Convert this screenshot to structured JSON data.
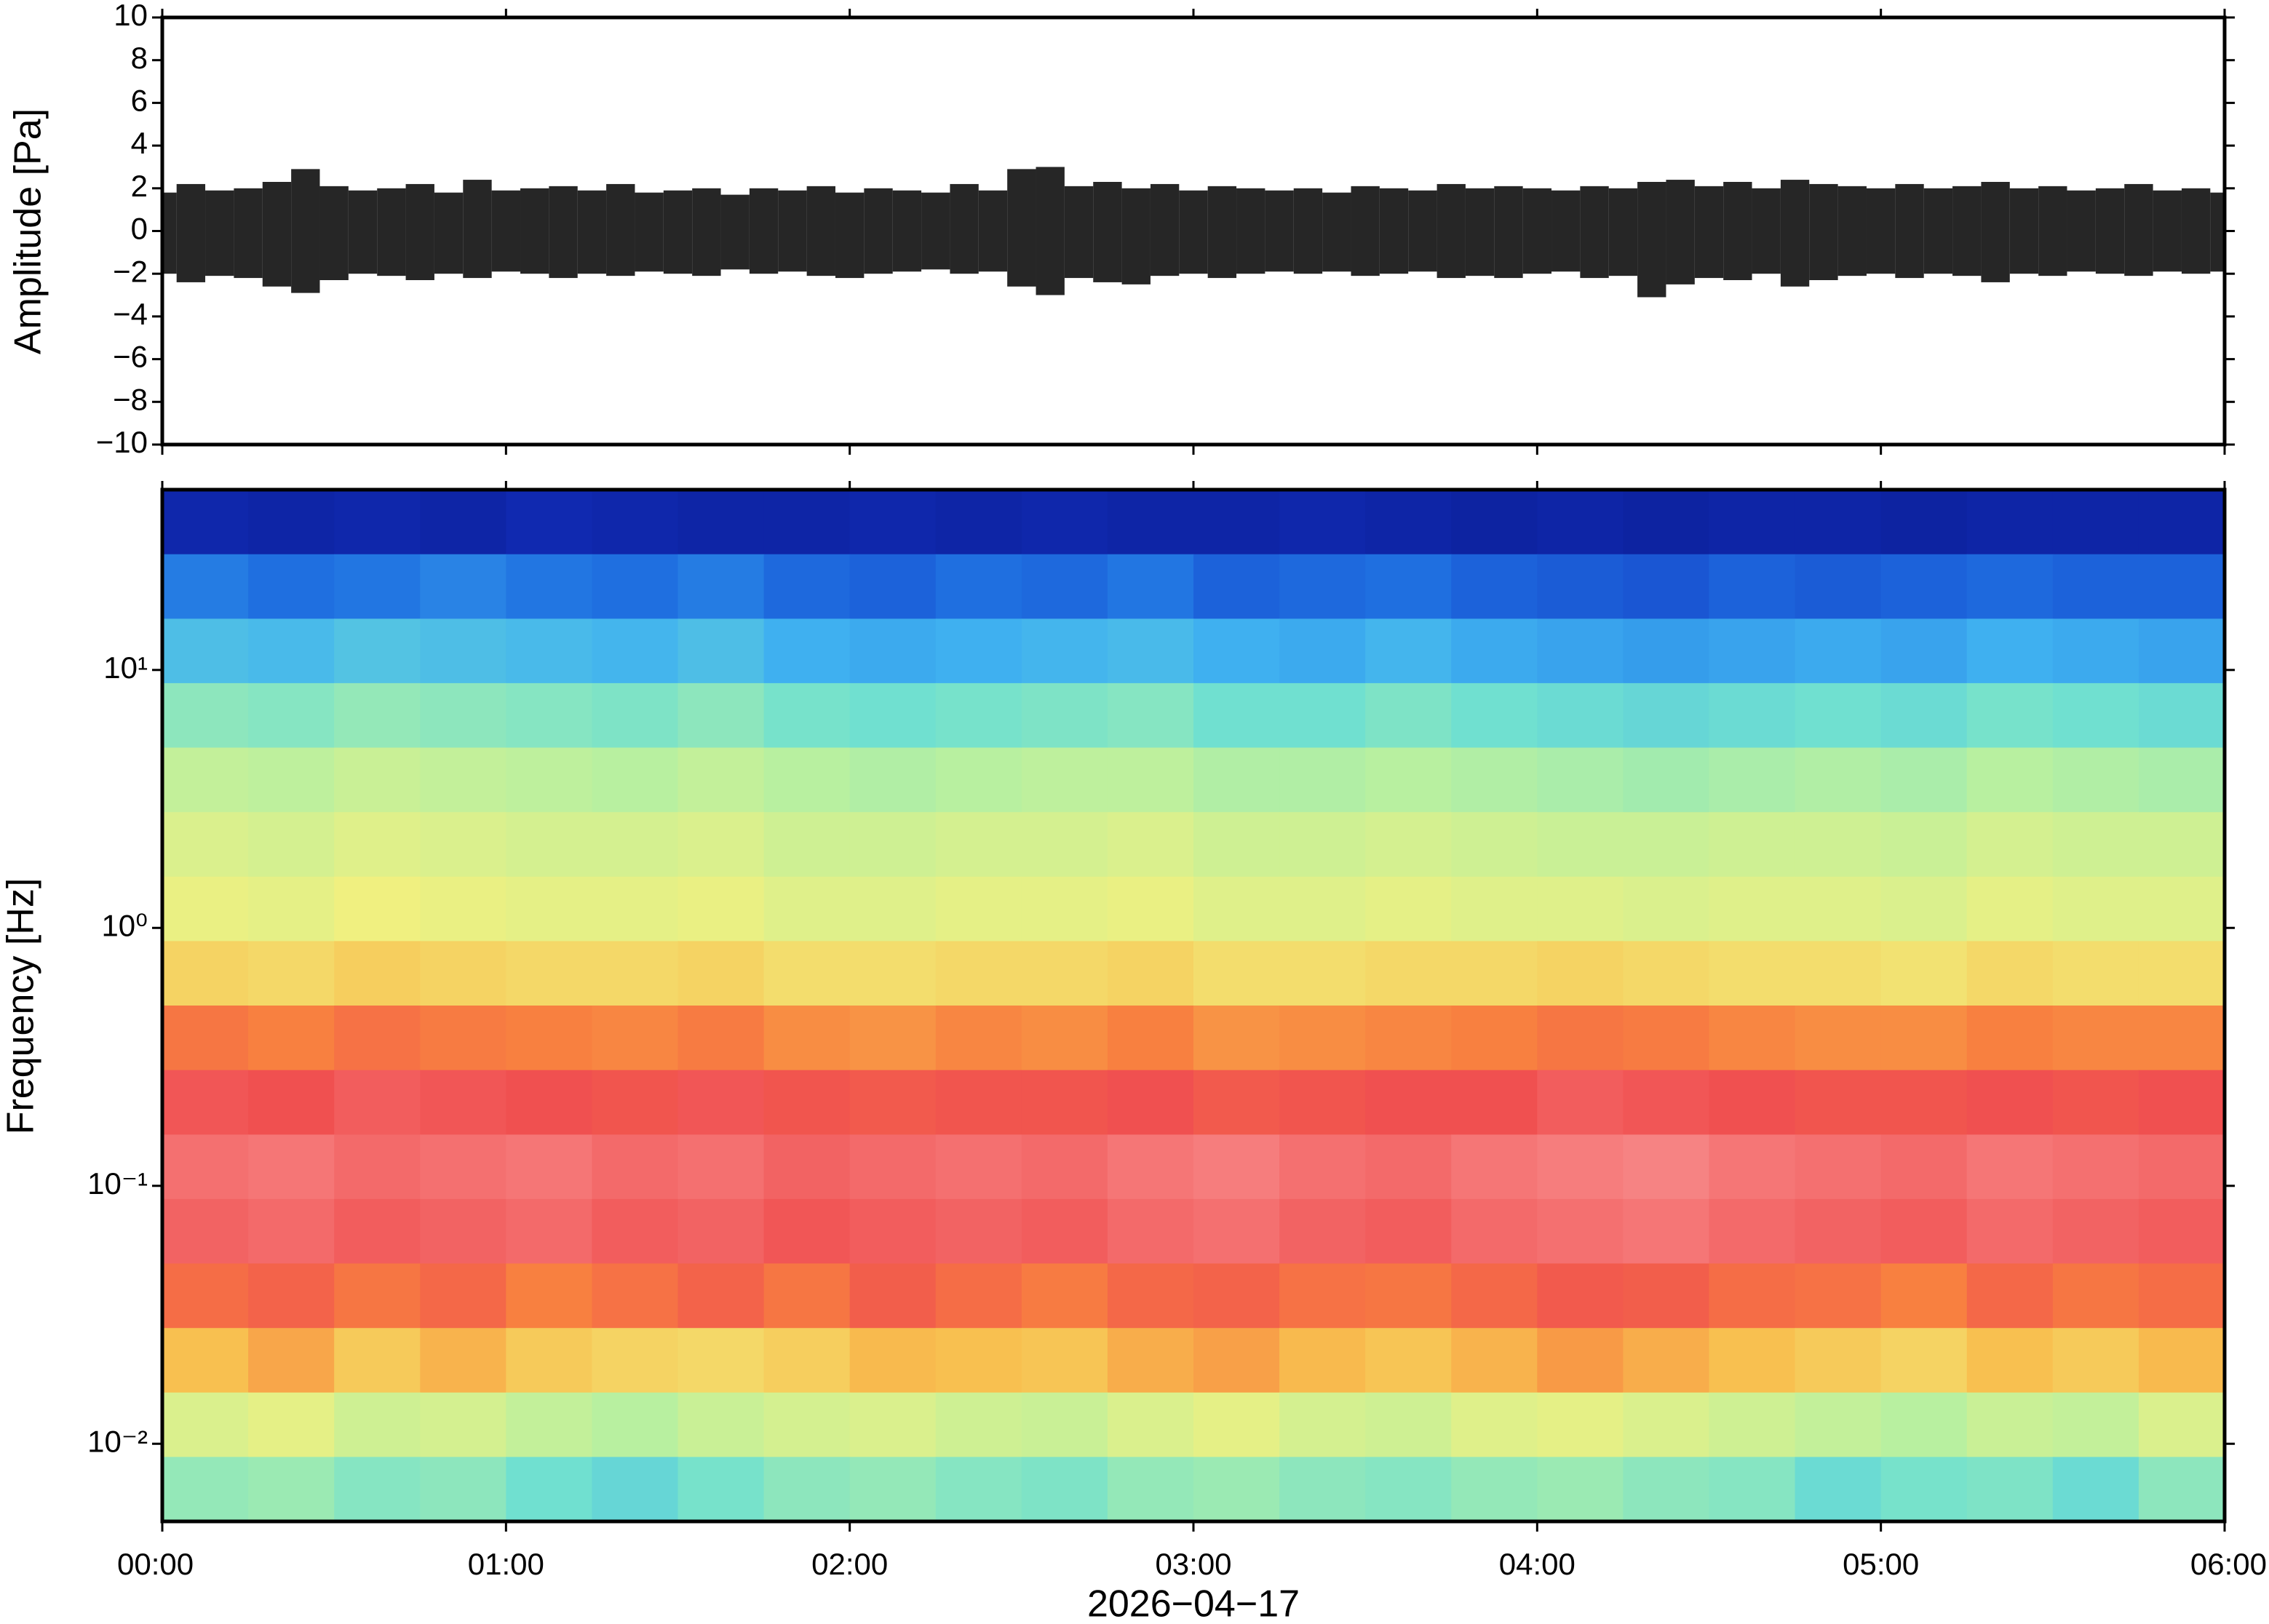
{
  "chart_data": [
    {
      "type": "range",
      "ylabel": "Amplitude [Pa]",
      "color": "#000000",
      "xlim": [
        0,
        360
      ],
      "xticks": [
        0,
        60,
        120,
        180,
        240,
        300,
        360
      ],
      "ylim": [
        -10,
        10
      ],
      "yticks": [
        {
          "value": -10,
          "label": "−10"
        },
        {
          "value": -8,
          "label": "−8"
        },
        {
          "value": -6,
          "label": "−6"
        },
        {
          "value": -4,
          "label": "−4"
        },
        {
          "value": -2,
          "label": "−2"
        },
        0,
        2,
        4,
        6,
        8,
        10
      ],
      "x": [
        0,
        5,
        10,
        15,
        20,
        25,
        30,
        35,
        40,
        45,
        50,
        55,
        60,
        65,
        70,
        75,
        80,
        85,
        90,
        95,
        100,
        105,
        110,
        115,
        120,
        125,
        130,
        135,
        140,
        145,
        150,
        155,
        160,
        165,
        170,
        175,
        180,
        185,
        190,
        195,
        200,
        205,
        210,
        215,
        220,
        225,
        230,
        235,
        240,
        245,
        250,
        255,
        260,
        265,
        270,
        275,
        280,
        285,
        290,
        295,
        300,
        305,
        310,
        315,
        320,
        325,
        330,
        335,
        340,
        345,
        350,
        355,
        360
      ],
      "high": [
        1.8,
        2.2,
        1.9,
        2.0,
        2.3,
        2.9,
        2.1,
        1.9,
        2.0,
        2.2,
        1.8,
        2.4,
        1.9,
        2.0,
        2.1,
        1.9,
        2.2,
        1.8,
        1.9,
        2.0,
        1.7,
        2.0,
        1.9,
        2.1,
        1.8,
        2.0,
        1.9,
        1.8,
        2.2,
        1.9,
        2.9,
        3.0,
        2.1,
        2.3,
        2.0,
        2.2,
        1.9,
        2.1,
        2.0,
        1.9,
        2.0,
        1.8,
        2.1,
        2.0,
        1.9,
        2.2,
        2.0,
        2.1,
        2.0,
        1.9,
        2.1,
        2.0,
        2.3,
        2.4,
        2.1,
        2.3,
        2.0,
        2.4,
        2.2,
        2.1,
        2.0,
        2.2,
        2.0,
        2.1,
        2.3,
        2.0,
        2.1,
        1.9,
        2.0,
        2.2,
        1.9,
        2.0,
        1.8
      ],
      "low": [
        -2.0,
        -2.4,
        -2.1,
        -2.2,
        -2.6,
        -2.9,
        -2.3,
        -2.0,
        -2.1,
        -2.3,
        -2.0,
        -2.2,
        -1.9,
        -2.0,
        -2.2,
        -2.0,
        -2.1,
        -1.9,
        -2.0,
        -2.1,
        -1.8,
        -2.0,
        -1.9,
        -2.1,
        -2.2,
        -2.0,
        -1.9,
        -1.8,
        -2.0,
        -1.9,
        -2.6,
        -3.0,
        -2.2,
        -2.4,
        -2.5,
        -2.1,
        -2.0,
        -2.2,
        -2.0,
        -1.9,
        -2.0,
        -1.9,
        -2.1,
        -2.0,
        -1.9,
        -2.2,
        -2.1,
        -2.2,
        -2.0,
        -1.9,
        -2.2,
        -2.1,
        -3.1,
        -2.5,
        -2.2,
        -2.3,
        -2.0,
        -2.6,
        -2.3,
        -2.1,
        -2.0,
        -2.2,
        -2.0,
        -2.1,
        -2.4,
        -2.0,
        -2.1,
        -1.9,
        -2.0,
        -2.1,
        -1.9,
        -2.0,
        -1.9
      ]
    },
    {
      "type": "heatmap",
      "ylabel": "Frequency [Hz]",
      "xlabel": "2026−04−17",
      "log_y": true,
      "xlim": [
        0,
        360
      ],
      "xticks": [
        {
          "value": 0,
          "label": "00:00"
        },
        {
          "value": 60,
          "label": "01:00"
        },
        {
          "value": 120,
          "label": "02:00"
        },
        {
          "value": 180,
          "label": "03:00"
        },
        {
          "value": 240,
          "label": "04:00"
        },
        {
          "value": 300,
          "label": "05:00"
        },
        {
          "value": 360,
          "label": "06:00"
        }
      ],
      "ylim": [
        0.005,
        50
      ],
      "yticks": [
        {
          "value": 0.01,
          "label": "10⁻²"
        },
        {
          "value": 0.1,
          "label": "10⁻¹"
        },
        {
          "value": 1,
          "label": "10⁰"
        },
        {
          "value": 10,
          "label": "10¹"
        }
      ],
      "colormap": [
        "#0a1a8c",
        "#1230c0",
        "#1f6fe0",
        "#3fb0f0",
        "#70e0d0",
        "#b8f0a0",
        "#f0f080",
        "#f8c050",
        "#f88040",
        "#f05050",
        "#f89090"
      ],
      "x_edges": [
        0,
        15,
        30,
        45,
        60,
        75,
        90,
        105,
        120,
        135,
        150,
        165,
        180,
        195,
        210,
        225,
        240,
        255,
        270,
        285,
        300,
        315,
        330,
        345,
        360
      ],
      "y_edges": [
        50,
        28.1,
        15.8,
        8.89,
        5,
        2.81,
        1.58,
        0.889,
        0.5,
        0.281,
        0.158,
        0.0889,
        0.05,
        0.0281,
        0.0158,
        0.00889,
        0.005
      ],
      "z": [
        [
          0.6,
          0.5,
          0.6,
          0.5,
          0.7,
          0.6,
          0.5,
          0.5,
          0.6,
          0.5,
          0.6,
          0.5,
          0.5,
          0.6,
          0.5,
          0.4,
          0.5,
          0.4,
          0.5,
          0.5,
          0.4,
          0.5,
          0.5,
          0.5
        ],
        [
          2.2,
          2.0,
          2.1,
          2.3,
          2.1,
          2.0,
          2.2,
          1.9,
          1.8,
          2.0,
          1.9,
          2.1,
          1.8,
          1.9,
          2.0,
          1.8,
          1.7,
          1.6,
          1.8,
          1.7,
          1.8,
          1.9,
          1.8,
          1.8
        ],
        [
          3.3,
          3.2,
          3.4,
          3.3,
          3.2,
          3.1,
          3.3,
          3.0,
          2.9,
          3.0,
          3.1,
          3.2,
          3.0,
          2.9,
          3.1,
          2.9,
          2.8,
          2.7,
          2.8,
          2.9,
          2.8,
          3.0,
          2.9,
          2.8
        ],
        [
          4.4,
          4.3,
          4.5,
          4.4,
          4.3,
          4.2,
          4.4,
          4.1,
          4.0,
          4.1,
          4.2,
          4.3,
          4.0,
          4.0,
          4.2,
          4.0,
          3.9,
          3.8,
          3.9,
          4.0,
          3.9,
          4.1,
          4.0,
          3.9
        ],
        [
          5.2,
          5.1,
          5.3,
          5.2,
          5.1,
          5.0,
          5.2,
          5.0,
          4.9,
          5.0,
          5.1,
          5.1,
          4.9,
          4.9,
          5.0,
          4.9,
          4.8,
          4.7,
          4.8,
          4.9,
          4.8,
          5.0,
          4.9,
          4.8
        ],
        [
          5.6,
          5.5,
          5.7,
          5.6,
          5.5,
          5.5,
          5.6,
          5.4,
          5.4,
          5.5,
          5.5,
          5.6,
          5.4,
          5.4,
          5.5,
          5.4,
          5.3,
          5.3,
          5.4,
          5.4,
          5.3,
          5.5,
          5.4,
          5.4
        ],
        [
          5.9,
          5.8,
          6.0,
          5.9,
          5.8,
          5.8,
          5.9,
          5.7,
          5.7,
          5.8,
          5.8,
          5.9,
          5.7,
          5.7,
          5.8,
          5.7,
          5.7,
          5.6,
          5.7,
          5.7,
          5.6,
          5.8,
          5.7,
          5.7
        ],
        [
          6.6,
          6.5,
          6.7,
          6.6,
          6.5,
          6.5,
          6.6,
          6.4,
          6.4,
          6.5,
          6.5,
          6.6,
          6.4,
          6.4,
          6.5,
          6.5,
          6.6,
          6.5,
          6.4,
          6.4,
          6.3,
          6.5,
          6.4,
          6.4
        ],
        [
          8.2,
          8.0,
          8.3,
          8.1,
          8.0,
          7.9,
          8.1,
          7.8,
          7.7,
          7.9,
          7.8,
          8.0,
          7.7,
          7.8,
          7.9,
          8.0,
          8.2,
          8.1,
          7.9,
          7.8,
          7.8,
          8.0,
          7.9,
          7.9
        ],
        [
          9.1,
          9.0,
          9.2,
          9.1,
          9.0,
          8.9,
          9.1,
          8.9,
          8.8,
          8.9,
          8.9,
          9.0,
          8.8,
          8.9,
          9.0,
          9.0,
          9.2,
          9.1,
          9.0,
          8.9,
          8.9,
          9.0,
          8.9,
          9.0
        ],
        [
          9.5,
          9.6,
          9.4,
          9.5,
          9.6,
          9.4,
          9.5,
          9.3,
          9.4,
          9.5,
          9.4,
          9.6,
          9.7,
          9.5,
          9.4,
          9.6,
          9.7,
          9.8,
          9.6,
          9.5,
          9.4,
          9.6,
          9.5,
          9.4
        ],
        [
          9.3,
          9.4,
          9.2,
          9.3,
          9.4,
          9.2,
          9.3,
          9.1,
          9.2,
          9.3,
          9.2,
          9.4,
          9.5,
          9.3,
          9.2,
          9.4,
          9.5,
          9.6,
          9.4,
          9.3,
          9.2,
          9.4,
          9.3,
          9.2
        ],
        [
          8.4,
          8.6,
          8.2,
          8.5,
          8.0,
          8.3,
          8.6,
          8.2,
          8.7,
          8.4,
          8.1,
          8.5,
          8.6,
          8.3,
          8.2,
          8.5,
          8.8,
          8.7,
          8.4,
          8.3,
          8.0,
          8.5,
          8.2,
          8.4
        ],
        [
          7.0,
          7.4,
          6.8,
          7.2,
          6.8,
          6.6,
          6.5,
          6.7,
          7.1,
          7.0,
          6.9,
          7.3,
          7.5,
          7.1,
          6.9,
          7.2,
          7.6,
          7.3,
          7.0,
          6.8,
          6.6,
          7.0,
          6.8,
          7.1
        ],
        [
          5.6,
          5.8,
          5.4,
          5.5,
          5.2,
          5.0,
          5.3,
          5.5,
          5.6,
          5.4,
          5.3,
          5.6,
          5.8,
          5.5,
          5.4,
          5.7,
          5.8,
          5.6,
          5.4,
          5.2,
          5.0,
          5.3,
          5.2,
          5.6
        ],
        [
          4.5,
          4.6,
          4.3,
          4.4,
          4.0,
          3.8,
          4.1,
          4.4,
          4.5,
          4.3,
          4.2,
          4.5,
          4.6,
          4.4,
          4.3,
          4.5,
          4.6,
          4.4,
          4.3,
          3.9,
          4.1,
          4.2,
          3.9,
          4.4
        ]
      ]
    }
  ]
}
